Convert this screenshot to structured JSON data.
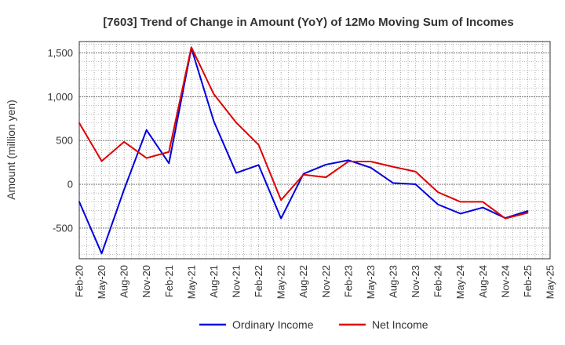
{
  "chart_data": {
    "type": "line",
    "title": "[7603]  Trend of Change in Amount (YoY) of 12Mo Moving Sum of Incomes",
    "xlabel": "",
    "ylabel": "Amount (million yen)",
    "ylim": [
      -850,
      1630
    ],
    "yticks": [
      -500,
      0,
      500,
      1000,
      1500
    ],
    "ytick_labels": [
      "-500",
      "0",
      "500",
      "1,000",
      "1,500"
    ],
    "categories": [
      "Feb-20",
      "May-20",
      "Aug-20",
      "Nov-20",
      "Feb-21",
      "May-21",
      "Aug-21",
      "Nov-21",
      "Feb-22",
      "May-22",
      "Aug-22",
      "Nov-22",
      "Feb-23",
      "May-23",
      "Aug-23",
      "Nov-23",
      "Feb-24",
      "May-24",
      "Aug-24",
      "Nov-24",
      "Feb-25",
      "May-25"
    ],
    "grid": true,
    "legend": "bottom",
    "series": [
      {
        "name": "Ordinary Income",
        "color": "#0000dd",
        "values": [
          -200,
          -790,
          -60,
          620,
          240,
          1555,
          720,
          130,
          220,
          -390,
          120,
          225,
          275,
          190,
          15,
          0,
          -230,
          -335,
          -265,
          -385,
          -305,
          null
        ]
      },
      {
        "name": "Net Income",
        "color": "#dd0000",
        "values": [
          700,
          265,
          485,
          300,
          370,
          1565,
          1030,
          705,
          450,
          -180,
          110,
          80,
          260,
          260,
          200,
          145,
          -90,
          -200,
          -200,
          -390,
          -325,
          null
        ]
      }
    ]
  }
}
